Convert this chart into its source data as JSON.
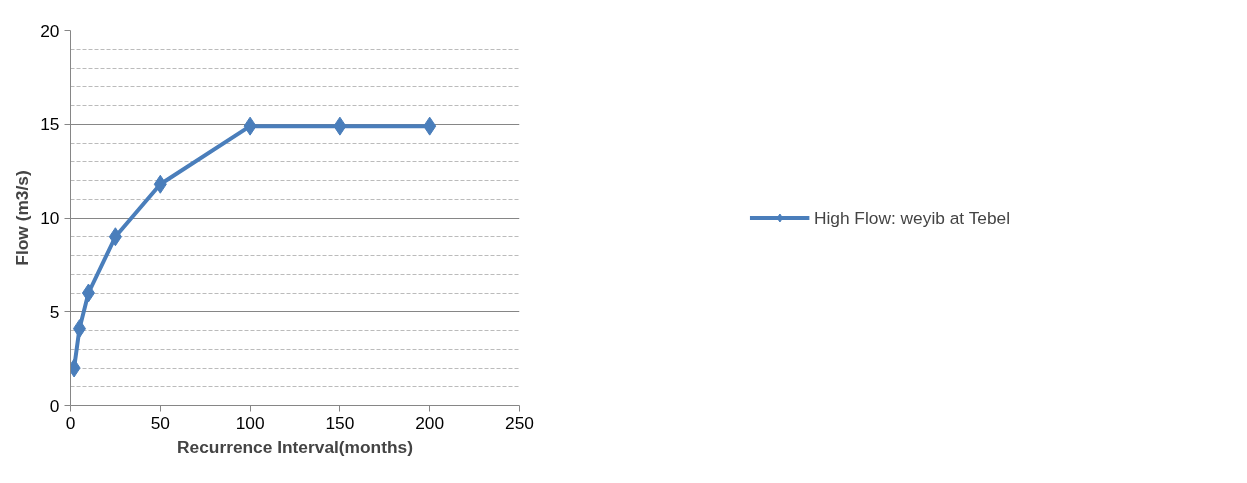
{
  "chart_data": {
    "type": "line",
    "xlabel": "Recurrence Interval(months)",
    "ylabel": "Flow (m3/s)",
    "x": [
      2,
      5,
      10,
      25,
      50,
      100,
      150,
      200
    ],
    "series": [
      {
        "name": "High Flow: weyib at Tebel",
        "color": "#4a7ebb",
        "values": [
          2,
          4.1,
          6,
          9,
          11.8,
          14.9,
          14.9,
          14.9
        ]
      }
    ],
    "xlim": [
      0,
      250
    ],
    "xticks": [
      0,
      50,
      100,
      150,
      200,
      250
    ],
    "ylim": [
      0,
      20
    ],
    "yticks": [
      0,
      5,
      10,
      15,
      20
    ],
    "grid": "y",
    "legend": "right",
    "marker": "diamond",
    "line_style": "solid"
  }
}
